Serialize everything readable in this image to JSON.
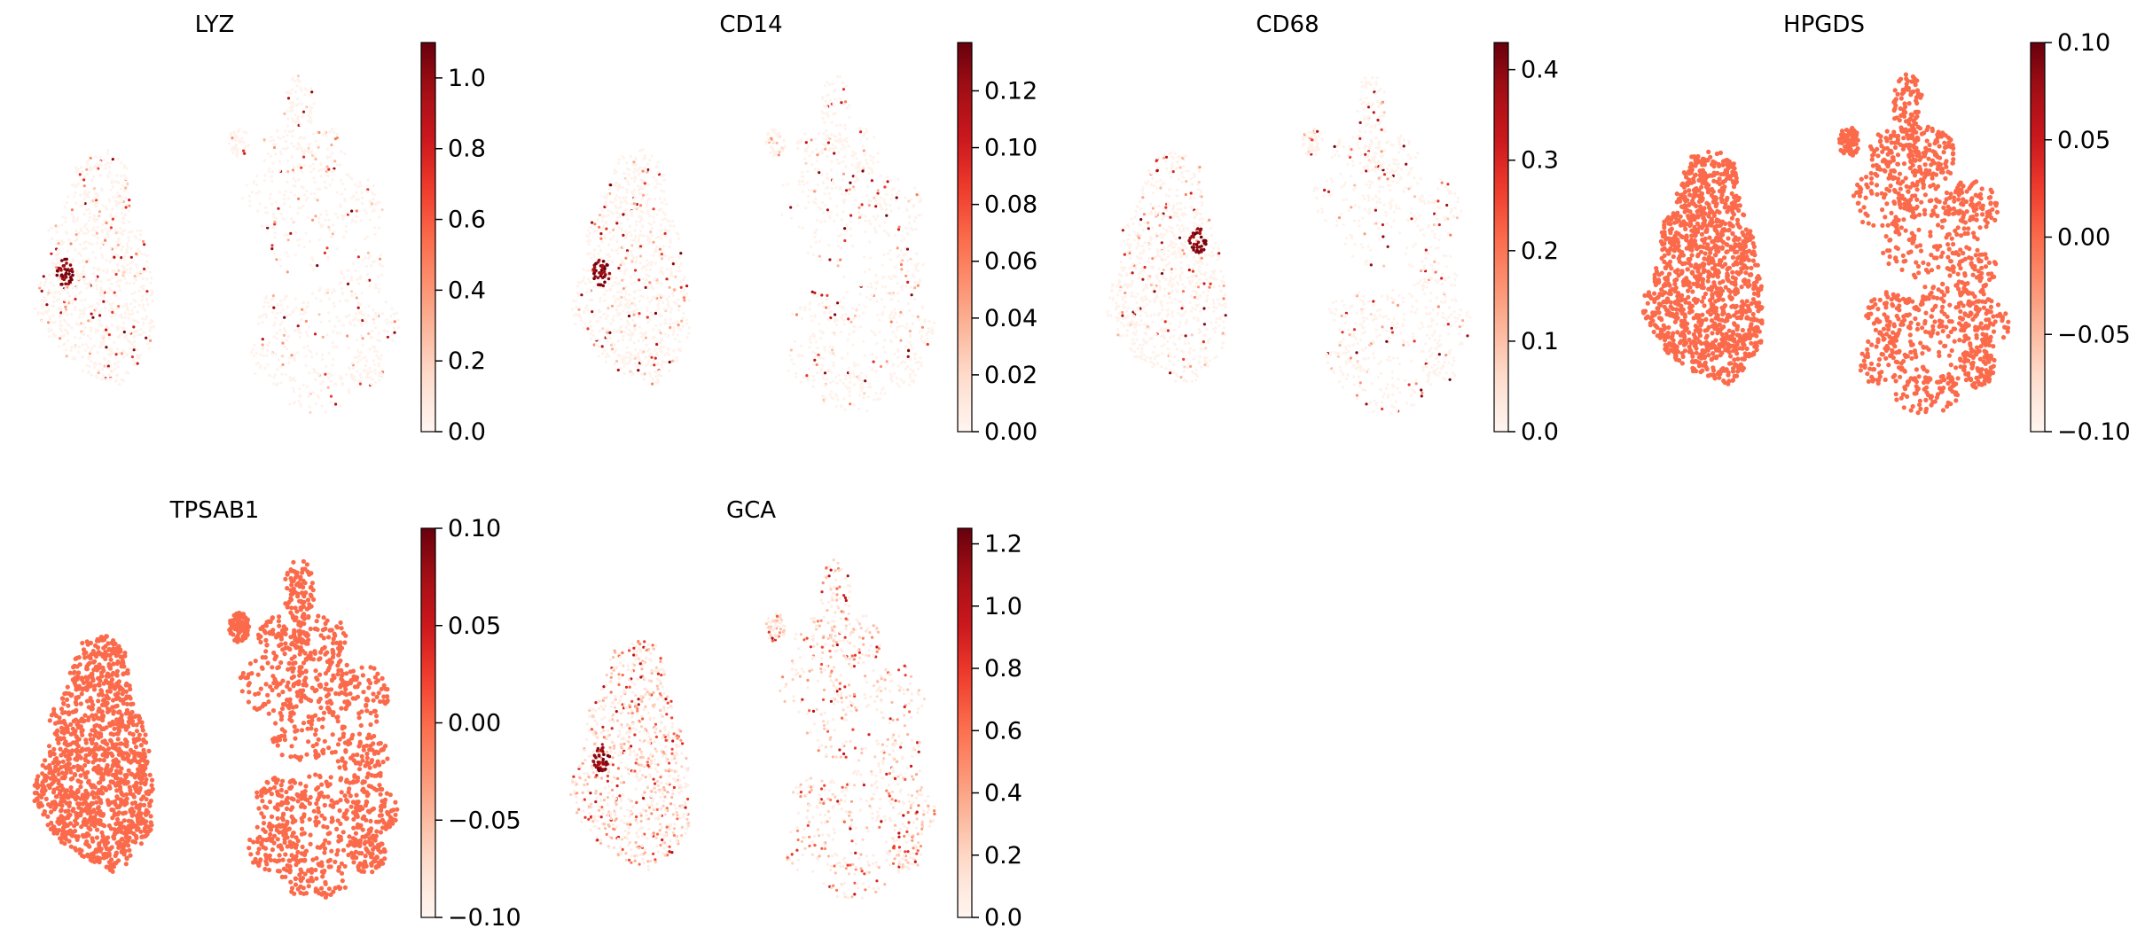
{
  "chart_data": {
    "type": "scatter",
    "colormap": "Reds",
    "colormap_stops": [
      "#fff5f0",
      "#fee0d2",
      "#fcbba1",
      "#fc9272",
      "#fb6a4a",
      "#ef3b2c",
      "#cb181d",
      "#a50f15",
      "#67000d"
    ],
    "panels": [
      {
        "title": "LYZ",
        "legend": "colorbar right",
        "clim": [
          0,
          1.1
        ],
        "ticks": [
          "0.0",
          "0.2",
          "0.4",
          "0.6",
          "0.8",
          "1.0"
        ],
        "tick_values": [
          0,
          0.2,
          0.4,
          0.6,
          0.8,
          1.0
        ],
        "expression": "sparse",
        "base_level": 0.02,
        "hotspot": "left-cluster"
      },
      {
        "title": "CD14",
        "legend": "colorbar right",
        "clim": [
          0,
          0.137
        ],
        "ticks": [
          "0.00",
          "0.02",
          "0.04",
          "0.06",
          "0.08",
          "0.10",
          "0.12"
        ],
        "tick_values": [
          0,
          0.02,
          0.04,
          0.06,
          0.08,
          0.1,
          0.12
        ],
        "expression": "sparse",
        "base_level": 0.02,
        "hotspot": "left-cluster"
      },
      {
        "title": "CD68",
        "legend": "colorbar right",
        "clim": [
          0,
          0.43
        ],
        "ticks": [
          "0.0",
          "0.1",
          "0.2",
          "0.3",
          "0.4"
        ],
        "tick_values": [
          0,
          0.1,
          0.2,
          0.3,
          0.4
        ],
        "expression": "sparse",
        "base_level": 0.02,
        "hotspot": "left-upper"
      },
      {
        "title": "HPGDS",
        "legend": "colorbar right",
        "clim": [
          -0.1,
          0.1
        ],
        "ticks": [
          "−0.10",
          "−0.05",
          "0.00",
          "0.05",
          "0.10"
        ],
        "tick_values": [
          -0.1,
          -0.05,
          0,
          0.05,
          0.1
        ],
        "expression": "uniform",
        "base_level": 0.5,
        "hotspot": "none"
      },
      {
        "title": "TPSAB1",
        "legend": "colorbar right",
        "clim": [
          -0.1,
          0.1
        ],
        "ticks": [
          "−0.10",
          "−0.05",
          "0.00",
          "0.05",
          "0.10"
        ],
        "tick_values": [
          -0.1,
          -0.05,
          0,
          0.05,
          0.1
        ],
        "expression": "uniform",
        "base_level": 0.5,
        "hotspot": "none"
      },
      {
        "title": "GCA",
        "legend": "colorbar right",
        "clim": [
          0,
          1.25
        ],
        "ticks": [
          "0.0",
          "0.2",
          "0.4",
          "0.6",
          "0.8",
          "1.0",
          "1.2"
        ],
        "tick_values": [
          0,
          0.2,
          0.4,
          0.6,
          0.8,
          1.0,
          1.2
        ],
        "expression": "moderate",
        "base_level": 0.05,
        "hotspot": "left-cluster"
      }
    ],
    "xlabel": "",
    "ylabel": "",
    "grid": false
  }
}
